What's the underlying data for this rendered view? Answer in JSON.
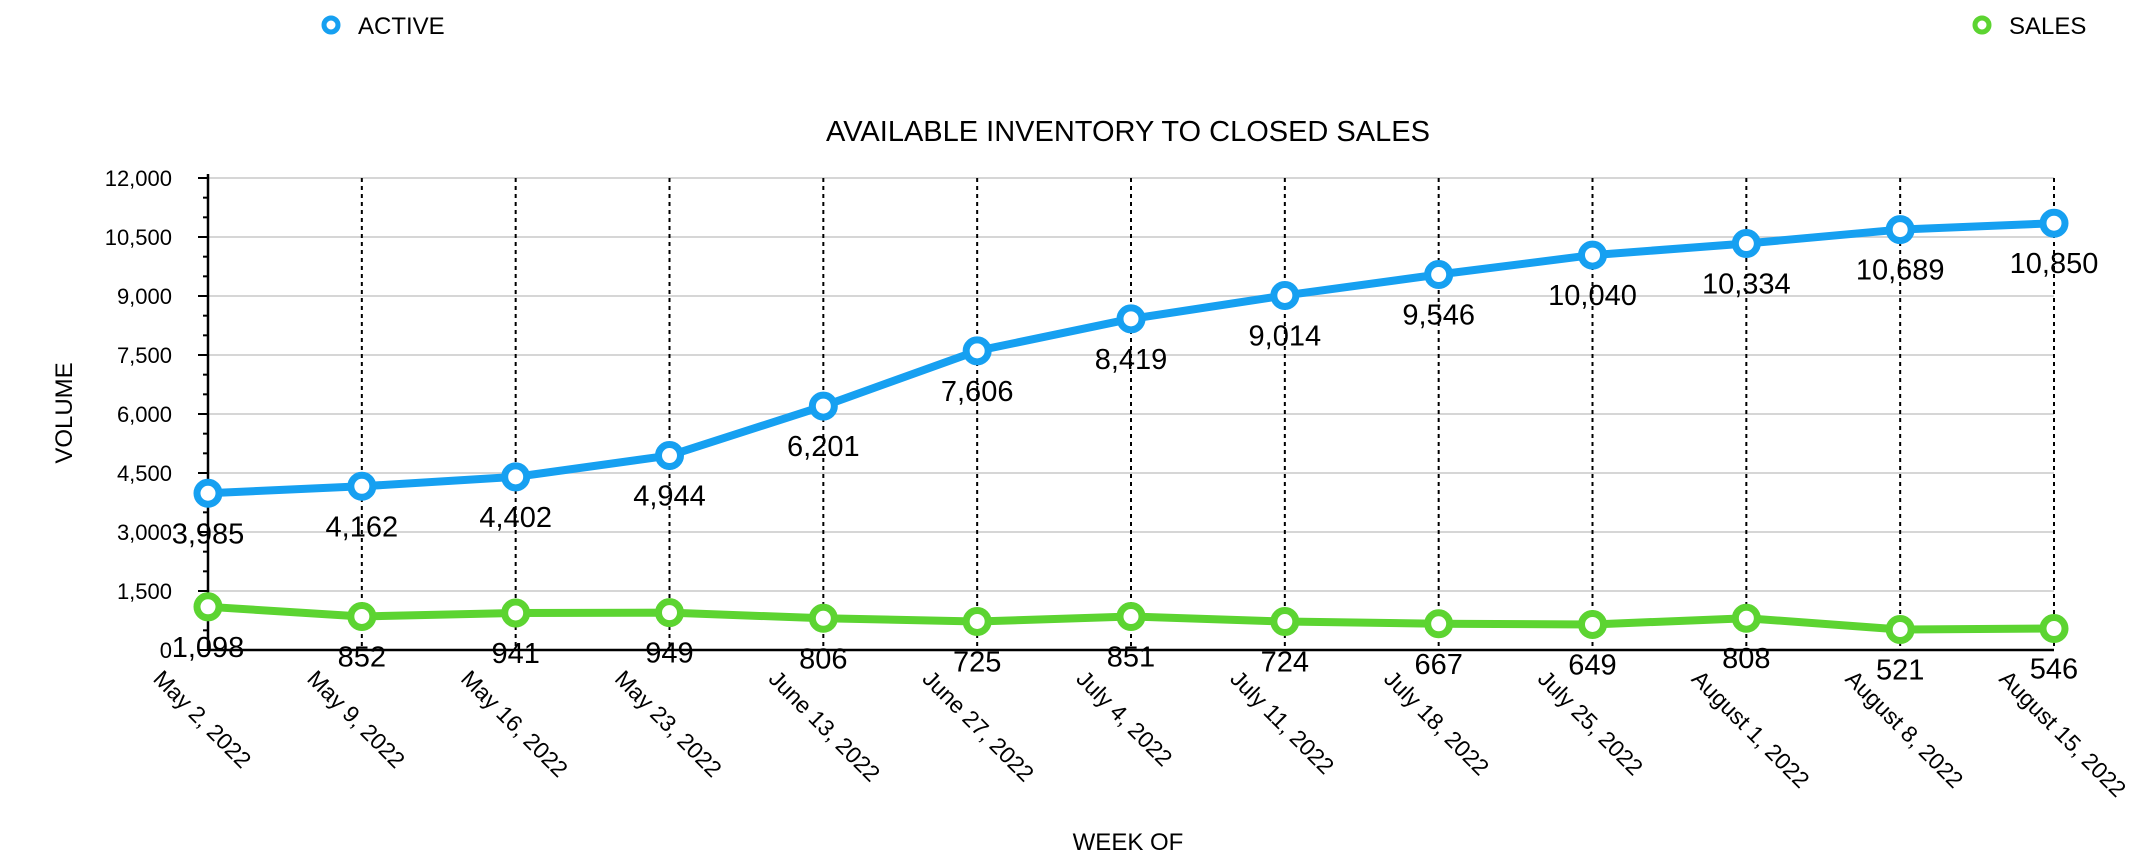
{
  "chart_data": {
    "type": "line",
    "title": "AVAILABLE INVENTORY TO CLOSED SALES",
    "xlabel": "WEEK OF",
    "ylabel": "VOLUME",
    "ylim": [
      0,
      12000
    ],
    "yticks": [
      0,
      1500,
      3000,
      4500,
      6000,
      7500,
      9000,
      10500,
      12000
    ],
    "ytick_labels": [
      "0",
      "1,500",
      "3,000",
      "4,500",
      "6,000",
      "7,500",
      "9,000",
      "10,500",
      "12,000"
    ],
    "categories": [
      "May 2, 2022",
      "May 9, 2022",
      "May 16, 2022",
      "May 23, 2022",
      "June 13, 2022",
      "June 27, 2022",
      "July 4, 2022",
      "July 11, 2022",
      "July 18, 2022",
      "July 25, 2022",
      "August 1, 2022",
      "August 8, 2022",
      "August 15, 2022"
    ],
    "series": [
      {
        "name": "ACTIVE",
        "color": "#16a0f1",
        "values": [
          3985,
          4162,
          4402,
          4944,
          6201,
          7606,
          8419,
          9014,
          9546,
          10040,
          10334,
          10689,
          10850
        ],
        "labels": [
          "3,985",
          "4,162",
          "4,402",
          "4,944",
          "6,201",
          "7,606",
          "8,419",
          "9,014",
          "9,546",
          "10,040",
          "10,334",
          "10,689",
          "10,850"
        ]
      },
      {
        "name": "SALES",
        "color": "#5cd431",
        "values": [
          1098,
          852,
          941,
          949,
          806,
          725,
          851,
          724,
          667,
          649,
          808,
          521,
          546
        ],
        "labels": [
          "1,098",
          "852",
          "941",
          "949",
          "806",
          "725",
          "851",
          "724",
          "667",
          "649",
          "808",
          "521",
          "546"
        ]
      }
    ],
    "legend": "top",
    "grid": "horizontal",
    "vertical_gridlines": "dotted"
  }
}
